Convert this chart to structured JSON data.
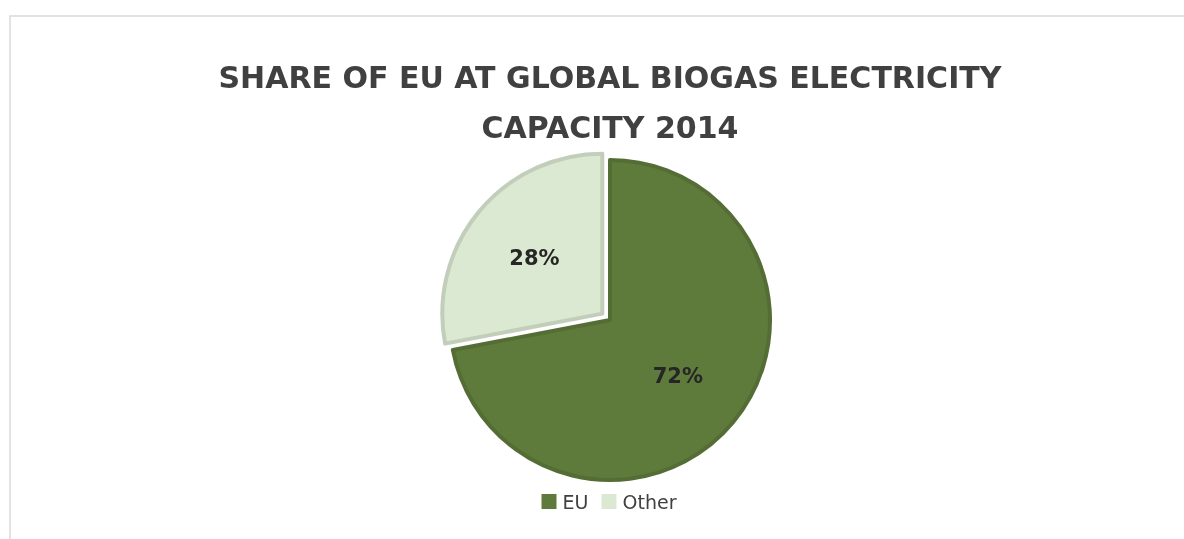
{
  "chart_data": {
    "type": "pie",
    "title": "SHARE OF EU AT GLOBAL BIOGAS ELECTRICITY CAPACITY 2014",
    "categories": [
      "EU",
      "Other"
    ],
    "values": [
      72,
      28
    ],
    "colors": [
      "#5f7b3b",
      "#dce9d2"
    ],
    "value_labels": [
      "72%",
      "28%"
    ],
    "legend": "bottom"
  }
}
